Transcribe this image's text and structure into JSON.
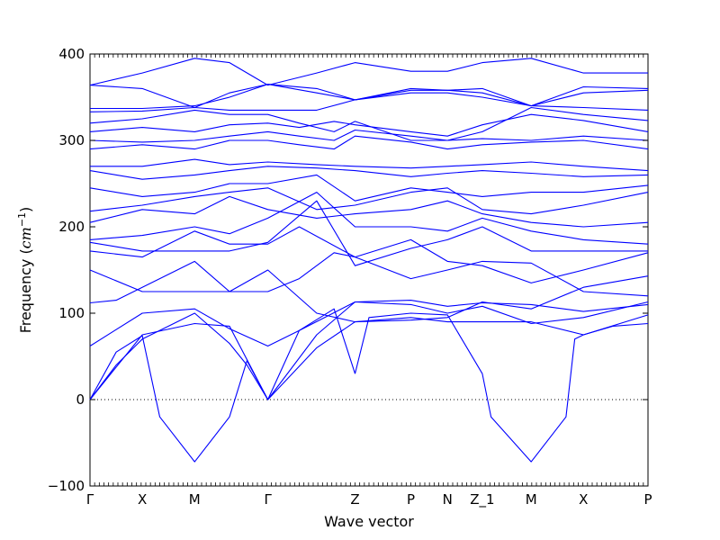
{
  "chart_data": {
    "type": "line",
    "title": "",
    "xlabel": "Wave vector",
    "ylabel": "Frequency (",
    "ylabel_unit": "cm",
    "ylabel_exp": "−1",
    "ylabel_close": ")",
    "ylim": [
      -100,
      400
    ],
    "yticks": [
      "400",
      "300",
      "200",
      "100",
      "0",
      "−100"
    ],
    "ytick_values": [
      400,
      300,
      200,
      100,
      0,
      -100
    ],
    "xlim": [
      0,
      3.2
    ],
    "xticks": [
      {
        "label": "Γ",
        "x": 0.0
      },
      {
        "label": "X",
        "x": 0.3
      },
      {
        "label": "M",
        "x": 0.6
      },
      {
        "label": "Γ",
        "x": 1.02
      },
      {
        "label": "Z",
        "x": 1.52
      },
      {
        "label": "P",
        "x": 1.84
      },
      {
        "label": "N",
        "x": 2.05
      },
      {
        "label": "Z_1",
        "x": 2.25
      },
      {
        "label": "M",
        "x": 2.53
      },
      {
        "label": "X",
        "x": 2.83
      },
      {
        "label": "P",
        "x": 3.2
      }
    ],
    "zero_line": {
      "y": 0,
      "style": "dotted"
    },
    "line_color": "#0000ff",
    "series": [
      {
        "x": [
          0,
          0.15,
          0.3,
          0.4,
          0.6,
          0.8,
          0.9,
          1.02,
          1.2,
          1.4,
          1.52
        ],
        "y": [
          0,
          55,
          74,
          -20,
          -72,
          -20,
          45,
          0,
          80,
          105,
          30
        ]
      },
      {
        "x": [
          1.52,
          1.6,
          1.84,
          2.05,
          2.25,
          2.3,
          2.53,
          2.73,
          2.78,
          2.83,
          3.0,
          3.2
        ],
        "y": [
          30,
          95,
          100,
          98,
          30,
          -20,
          -72,
          -20,
          70,
          75,
          85,
          88
        ]
      },
      {
        "x": [
          0,
          0.15,
          0.3,
          0.6,
          0.8,
          0.9,
          1.02,
          1.3,
          1.52,
          1.84,
          2.05,
          2.53,
          2.83,
          3.2
        ],
        "y": [
          0,
          40,
          70,
          100,
          65,
          40,
          0,
          60,
          90,
          95,
          90,
          90,
          75,
          98
        ]
      },
      {
        "x": [
          0,
          0.3,
          0.6,
          0.8,
          1.02,
          1.3,
          1.52,
          1.84,
          2.05,
          2.25,
          2.53,
          2.83,
          3.2
        ],
        "y": [
          0,
          75,
          88,
          85,
          0,
          75,
          113,
          110,
          100,
          108,
          88,
          95,
          113
        ]
      },
      {
        "x": [
          0,
          0.3,
          0.6,
          0.8,
          1.02,
          1.2,
          1.52,
          1.84,
          2.05,
          2.25,
          2.53,
          2.83,
          3.2
        ],
        "y": [
          62,
          100,
          105,
          82,
          62,
          80,
          113,
          115,
          108,
          112,
          110,
          102,
          110
        ]
      },
      {
        "x": [
          0,
          0.15,
          0.3,
          0.6,
          0.8,
          1.02,
          1.3,
          1.52,
          1.84,
          2.05,
          2.25,
          2.53,
          2.83,
          3.2
        ],
        "y": [
          112,
          115,
          130,
          160,
          125,
          150,
          100,
          90,
          92,
          95,
          113,
          105,
          130,
          143
        ]
      },
      {
        "x": [
          0,
          0.3,
          0.6,
          0.8,
          1.02,
          1.2,
          1.4,
          1.52,
          1.84,
          2.05,
          2.25,
          2.53,
          2.83,
          3.2
        ],
        "y": [
          150,
          125,
          125,
          125,
          125,
          140,
          170,
          165,
          140,
          150,
          160,
          158,
          125,
          120
        ]
      },
      {
        "x": [
          0,
          0.3,
          0.6,
          0.8,
          1.02,
          1.2,
          1.52,
          1.84,
          2.05,
          2.25,
          2.53,
          2.83,
          3.2
        ],
        "y": [
          172,
          165,
          195,
          180,
          180,
          200,
          165,
          185,
          160,
          155,
          135,
          150,
          170
        ]
      },
      {
        "x": [
          0,
          0.3,
          0.6,
          0.8,
          1.02,
          1.3,
          1.52,
          1.84,
          2.05,
          2.25,
          2.53,
          2.83,
          3.2
        ],
        "y": [
          182,
          172,
          172,
          172,
          182,
          230,
          155,
          175,
          185,
          200,
          172,
          172,
          172
        ]
      },
      {
        "x": [
          0,
          0.3,
          0.6,
          0.8,
          1.02,
          1.3,
          1.52,
          1.84,
          2.05,
          2.25,
          2.53,
          2.83,
          3.2
        ],
        "y": [
          185,
          190,
          200,
          192,
          210,
          240,
          200,
          200,
          195,
          210,
          195,
          185,
          180
        ]
      },
      {
        "x": [
          0,
          0.3,
          0.6,
          0.8,
          1.02,
          1.3,
          1.52,
          1.84,
          2.05,
          2.25,
          2.53,
          2.83,
          3.2
        ],
        "y": [
          205,
          220,
          215,
          235,
          220,
          210,
          215,
          220,
          230,
          215,
          205,
          200,
          205
        ]
      },
      {
        "x": [
          0,
          0.3,
          0.6,
          0.8,
          1.02,
          1.3,
          1.52,
          1.84,
          2.05,
          2.25,
          2.53,
          2.83,
          3.2
        ],
        "y": [
          218,
          225,
          235,
          240,
          245,
          220,
          225,
          240,
          245,
          220,
          215,
          225,
          240
        ]
      },
      {
        "x": [
          0,
          0.3,
          0.6,
          0.8,
          1.02,
          1.3,
          1.52,
          1.84,
          2.05,
          2.25,
          2.53,
          2.83,
          3.2
        ],
        "y": [
          245,
          235,
          240,
          250,
          250,
          260,
          230,
          245,
          240,
          235,
          240,
          240,
          248
        ]
      },
      {
        "x": [
          0,
          0.3,
          0.6,
          0.8,
          1.02,
          1.3,
          1.52,
          1.84,
          2.05,
          2.25,
          2.53,
          2.83,
          3.2
        ],
        "y": [
          265,
          255,
          260,
          265,
          270,
          268,
          265,
          258,
          262,
          265,
          262,
          258,
          260
        ]
      },
      {
        "x": [
          0,
          0.3,
          0.6,
          0.8,
          1.02,
          1.3,
          1.52,
          1.84,
          2.05,
          2.25,
          2.53,
          2.83,
          3.2
        ],
        "y": [
          270,
          270,
          278,
          272,
          275,
          272,
          270,
          268,
          270,
          272,
          275,
          270,
          265
        ]
      },
      {
        "x": [
          0,
          0.3,
          0.6,
          0.8,
          1.02,
          1.2,
          1.4,
          1.52,
          1.84,
          2.05,
          2.25,
          2.53,
          2.83,
          3.2
        ],
        "y": [
          290,
          295,
          290,
          300,
          300,
          295,
          290,
          305,
          298,
          290,
          295,
          298,
          300,
          290
        ]
      },
      {
        "x": [
          0,
          0.3,
          0.6,
          0.8,
          1.02,
          1.2,
          1.4,
          1.52,
          1.84,
          2.05,
          2.25,
          2.53,
          2.83,
          3.2
        ],
        "y": [
          300,
          298,
          300,
          305,
          310,
          305,
          300,
          312,
          305,
          300,
          302,
          300,
          305,
          300
        ]
      },
      {
        "x": [
          0,
          0.3,
          0.6,
          0.8,
          1.02,
          1.2,
          1.4,
          1.52,
          1.84,
          2.05,
          2.25,
          2.53,
          2.83,
          3.2
        ],
        "y": [
          310,
          315,
          310,
          318,
          320,
          315,
          322,
          318,
          310,
          305,
          318,
          330,
          323,
          310
        ]
      },
      {
        "x": [
          0,
          0.3,
          0.6,
          0.8,
          1.02,
          1.2,
          1.4,
          1.52,
          1.84,
          2.05,
          2.25,
          2.53,
          2.83,
          3.2
        ],
        "y": [
          320,
          325,
          335,
          330,
          330,
          320,
          310,
          322,
          300,
          300,
          310,
          338,
          330,
          323
        ]
      },
      {
        "x": [
          0,
          0.3,
          0.6,
          0.8,
          1.02,
          1.3,
          1.52,
          1.84,
          2.05,
          2.25,
          2.53,
          2.83,
          3.2
        ],
        "y": [
          333,
          334,
          338,
          335,
          335,
          335,
          347,
          355,
          355,
          350,
          340,
          338,
          335
        ]
      },
      {
        "x": [
          0,
          0.3,
          0.6,
          0.8,
          1.02,
          1.3,
          1.52,
          1.84,
          2.05,
          2.25,
          2.53,
          2.83,
          3.2
        ],
        "y": [
          337,
          337,
          340,
          350,
          365,
          355,
          347,
          358,
          358,
          355,
          340,
          355,
          358
        ]
      },
      {
        "x": [
          0,
          0.3,
          0.6,
          0.8,
          1.02,
          1.3,
          1.52,
          1.84,
          2.05,
          2.25,
          2.53,
          2.83,
          3.2
        ],
        "y": [
          364,
          360,
          338,
          355,
          365,
          360,
          347,
          360,
          358,
          360,
          340,
          362,
          360
        ]
      },
      {
        "x": [
          0,
          0.3,
          0.6,
          0.8,
          1.02,
          1.3,
          1.52,
          1.84,
          2.05,
          2.25,
          2.53,
          2.83,
          3.2
        ],
        "y": [
          364,
          378,
          395,
          390,
          364,
          378,
          390,
          380,
          380,
          390,
          395,
          378,
          378
        ]
      }
    ]
  }
}
